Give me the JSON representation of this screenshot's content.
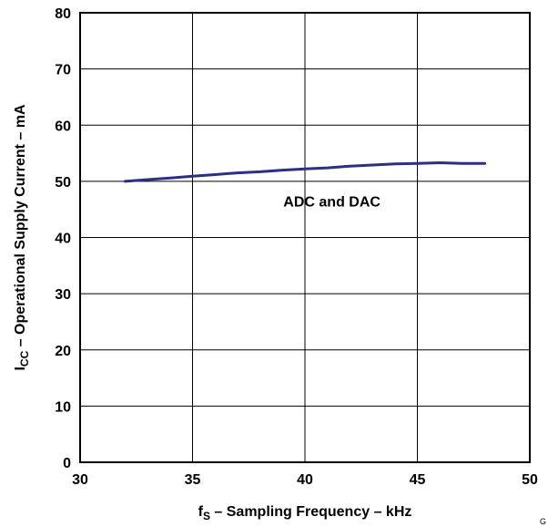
{
  "chart_data": {
    "type": "line",
    "xlabel": "f_S – Sampling Frequency – kHz",
    "xlabel_parts": {
      "main": "f",
      "sub": "S",
      "rest": " – Sampling Frequency – kHz"
    },
    "ylabel": "I_CC – Operational Supply Current – mA",
    "ylabel_parts": {
      "main": "I",
      "sub": "CC",
      "rest": " – Operational Supply Current – mA"
    },
    "xlim": [
      30,
      50
    ],
    "ylim": [
      0,
      80
    ],
    "x_ticks": [
      "30",
      "35",
      "40",
      "45",
      "50"
    ],
    "y_ticks": [
      "0",
      "10",
      "20",
      "30",
      "40",
      "50",
      "60",
      "70",
      "80"
    ],
    "grid": true,
    "series": [
      {
        "name": "ADC and DAC",
        "color": "#2b2f86",
        "x": [
          32,
          33,
          34,
          35,
          36,
          37,
          38,
          39,
          40,
          41,
          42,
          43,
          44,
          45,
          46,
          47,
          48
        ],
        "y": [
          50.0,
          50.3,
          50.6,
          50.9,
          51.2,
          51.5,
          51.7,
          52.0,
          52.2,
          52.4,
          52.7,
          52.9,
          53.1,
          53.2,
          53.3,
          53.2,
          53.2
        ]
      }
    ],
    "annotations": [
      {
        "text": "ADC and DAC",
        "x": 41.2,
        "y": 45.5
      }
    ],
    "corner_label": "G"
  }
}
